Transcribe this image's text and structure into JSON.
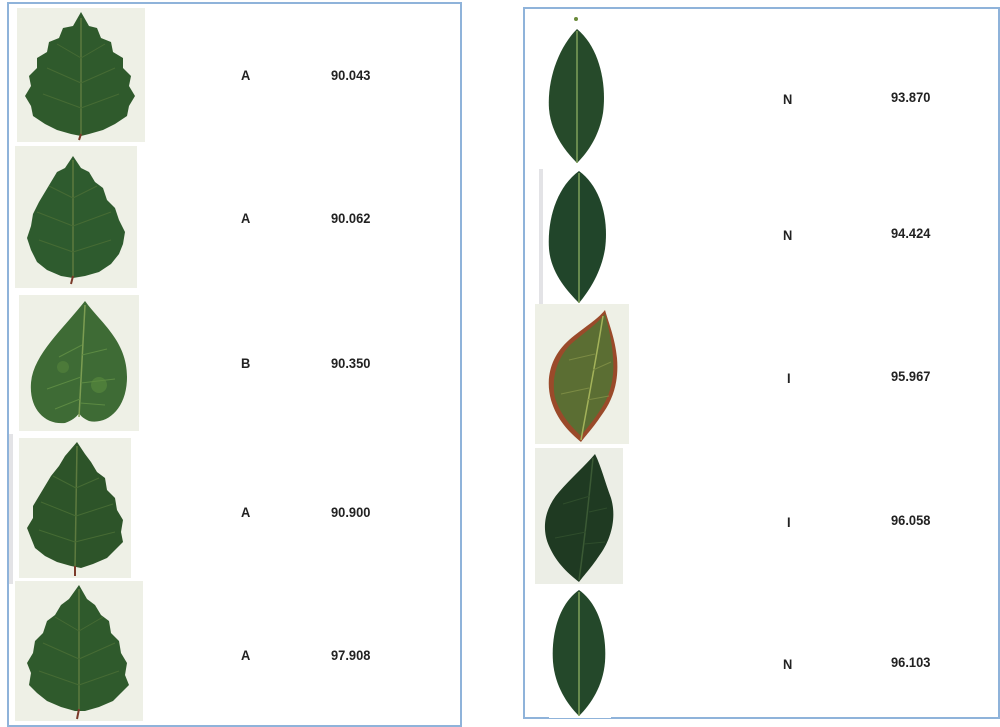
{
  "left_panel": {
    "rows": [
      {
        "label": "A",
        "score": "90.043",
        "leaf": "serrated-ovate-leaf"
      },
      {
        "label": "A",
        "score": "90.062",
        "leaf": "serrated-ovate-leaf"
      },
      {
        "label": "B",
        "score": "90.350",
        "leaf": "heart-shaped-leaf"
      },
      {
        "label": "A",
        "score": "90.900",
        "leaf": "serrated-ovate-leaf"
      },
      {
        "label": "A",
        "score": "97.908",
        "leaf": "serrated-ovate-leaf"
      }
    ]
  },
  "right_panel": {
    "rows": [
      {
        "label": "N",
        "score": "93.870",
        "leaf": "elliptic-leaf"
      },
      {
        "label": "N",
        "score": "94.424",
        "leaf": "elliptic-leaf"
      },
      {
        "label": "I",
        "score": "95.967",
        "leaf": "ovate-leaf-reddish-margin"
      },
      {
        "label": "I",
        "score": "96.058",
        "leaf": "dark-ovate-leaf"
      },
      {
        "label": "N",
        "score": "96.103",
        "leaf": "elliptic-leaf"
      }
    ]
  },
  "colors": {
    "panel_border": "#8fb3da",
    "leaf_green": "#2f5a2c",
    "leaf_dark": "#1f3a22",
    "leaf_light": "#4f7a3a",
    "leaf_margin_red": "#9a4a2a",
    "thumb_bg": "#eef0e6"
  }
}
